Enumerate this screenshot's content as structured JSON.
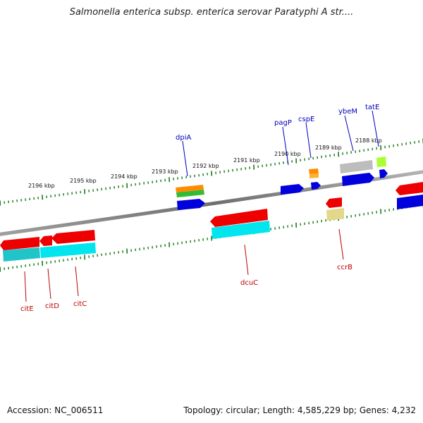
{
  "title": "Salmonella enterica subsp. enterica serovar Paratyphi A str....",
  "footer": {
    "accession": "Accession: NC_006511",
    "summary": "Topology: circular; Length: 4,585,229 bp; Genes: 4,232"
  },
  "scale": {
    "labels": [
      "2196 kbp",
      "2195 kbp",
      "2194 kbp",
      "2193 kbp",
      "2192 kbp",
      "2191 kbp",
      "2190 kbp",
      "2189 kbp",
      "2188 kbp"
    ]
  },
  "genes_top": [
    "dpiA",
    "pagP",
    "cspE",
    "ybeM",
    "tatE"
  ],
  "genes_bottom": [
    "citE",
    "citD",
    "citC",
    "dcuC",
    "ccrB"
  ],
  "colors": {
    "backbone": "#8c8c8c",
    "tick": "#1a7a1a",
    "forward_label": "#0000bb",
    "reverse_label": "#bb0000",
    "red": "#ee0000",
    "blue": "#0000dd",
    "cyan": "#00e5ee",
    "orange": "#ff8c00",
    "green": "#33bb33",
    "grey": "#bdbdbd",
    "lime": "#aaff33",
    "tan": "#e3d78a"
  }
}
